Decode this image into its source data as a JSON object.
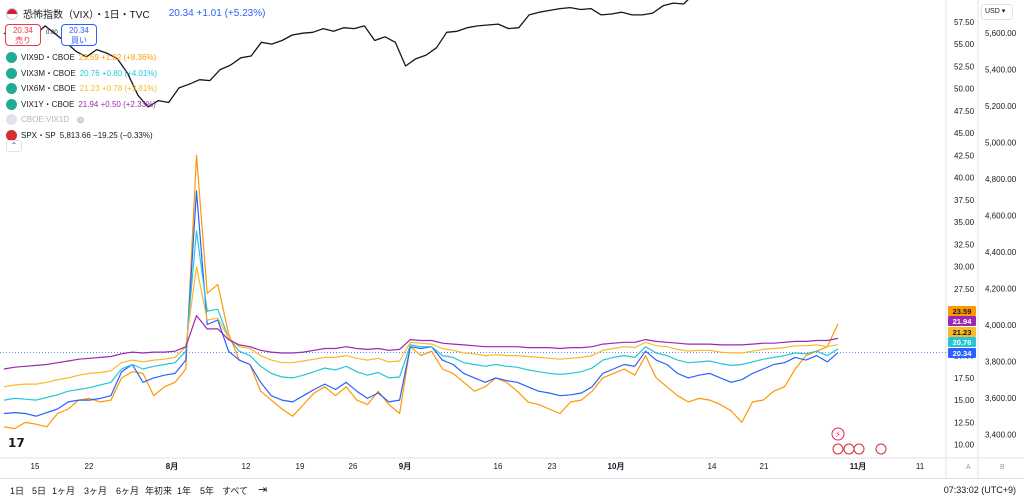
{
  "header": {
    "title": "恐怖指数（VIX）・1日・TVC",
    "price_change": "20.34 +1.01 (+5.23%)",
    "sell_price": "20.34",
    "sell_label": "売り",
    "buy_price": "20.34",
    "buy_label": "買い",
    "spread": "0.00"
  },
  "legend": [
    {
      "name": "VIX9D・CBOE",
      "value": "23.59 +1.82 (+8.36%)",
      "color": "#ff9800"
    },
    {
      "name": "VIX3M・CBOE",
      "value": "20.76 +0.80 (+4.01%)",
      "color": "#26c6da"
    },
    {
      "name": "VIX6M・CBOE",
      "value": "21.23 +0.78 (+3.81%)",
      "color": "#f9b928"
    },
    {
      "name": "VIX1Y・CBOE",
      "value": "21.94 +0.50 (+2.33%)",
      "color": "#9c27b0"
    },
    {
      "name": "CBOE:VIX1D",
      "value": "",
      "color": "#b2b5be"
    },
    {
      "name": "SPX・SP",
      "value": "5,813.66 −19.25 (−0.33%)",
      "color": "#131722"
    }
  ],
  "currency": "USD",
  "collapse_icon": "chevron-up-icon",
  "bottom": {
    "ranges": [
      "1日",
      "5日",
      "1ヶ月",
      "3ヶ月",
      "6ヶ月",
      "年初来",
      "1年",
      "5年",
      "すべて"
    ],
    "time": "07:33:02 (UTC+9)"
  },
  "chart_data": {
    "type": "line",
    "x_tick_labels": [
      "15",
      "22",
      "8月",
      "12",
      "19",
      "26",
      "9月",
      "16",
      "23",
      "10月",
      "14",
      "21",
      "11月",
      "11"
    ],
    "left_axis_ticks": [
      "57.50",
      "55.00",
      "52.50",
      "50.00",
      "47.50",
      "45.00",
      "42.50",
      "40.00",
      "37.50",
      "35.00",
      "32.50",
      "30.00",
      "27.50",
      "25.00",
      "22.50",
      "20.00",
      "17.50",
      "15.00",
      "12.50",
      "10.00"
    ],
    "right_axis_ticks": [
      "5,600.00",
      "5,400.00",
      "5,200.00",
      "5,000.00",
      "4,800.00",
      "4,600.00",
      "4,400.00",
      "4,200.00",
      "4,000.00",
      "3,800.00",
      "3,600.00",
      "3,400.00"
    ],
    "ylim_vix": [
      8.5,
      59.5
    ],
    "ylim_spx": [
      3270,
      5760
    ],
    "last_value_badges": [
      {
        "label": "23.59",
        "color": "#ff9800"
      },
      {
        "label": "21.94",
        "color": "#9c27b0"
      },
      {
        "label": "21.23",
        "color": "#f9b928"
      },
      {
        "label": "20.76",
        "color": "#26c6da"
      },
      {
        "label": "20.34",
        "color": "#2962ff"
      }
    ],
    "series": [
      {
        "name": "SPX",
        "axis": "right",
        "color": "#131722",
        "values": [
          5600,
          5570,
          5580,
          5590,
          5640,
          5595,
          5550,
          5500,
          5470,
          5510,
          5490,
          5460,
          5380,
          5260,
          5195,
          5230,
          5220,
          5300,
          5320,
          5345,
          5340,
          5400,
          5425,
          5465,
          5475,
          5550,
          5540,
          5560,
          5590,
          5600,
          5605,
          5625,
          5610,
          5630,
          5625,
          5640,
          5560,
          5580,
          5550,
          5420,
          5460,
          5480,
          5520,
          5605,
          5610,
          5630,
          5640,
          5645,
          5650,
          5625,
          5630,
          5700,
          5715,
          5725,
          5735,
          5740,
          5730,
          5735,
          5700,
          5705,
          5715,
          5700,
          5700,
          5710,
          5750,
          5765,
          5760,
          5815,
          5850,
          5855,
          5840,
          5875,
          5880,
          5870,
          5865,
          5840,
          5822,
          5830,
          5860,
          5840,
          5830,
          5813
        ]
      },
      {
        "name": "VIX9D",
        "axis": "left",
        "color": "#ff9800",
        "values": [
          12,
          11.8,
          12.5,
          12.3,
          12.0,
          13.5,
          14.0,
          15.0,
          15.2,
          14.8,
          15.0,
          17.5,
          18.2,
          18.0,
          15.5,
          16.5,
          17.0,
          18.5,
          42.5,
          27.0,
          28.0,
          22.5,
          19.5,
          19.0,
          16.0,
          15.0,
          14.0,
          13.2,
          14.5,
          15.8,
          16.5,
          15.5,
          16.5,
          15.0,
          14.5,
          16.0,
          14.5,
          13.5,
          21.0,
          20.0,
          20.5,
          18.5,
          18.0,
          17.0,
          16.0,
          16.5,
          17.5,
          17.0,
          16.0,
          14.8,
          14.5,
          14.0,
          13.5,
          14.8,
          15.0,
          16.0,
          17.5,
          18.0,
          18.5,
          17.8,
          20.0,
          17.5,
          16.5,
          15.5,
          14.8,
          15.2,
          15.0,
          14.5,
          13.8,
          12.5,
          14.8,
          15.0,
          16.0,
          16.5,
          18.5,
          20.0,
          20.5,
          21.0,
          23.59
        ]
      },
      {
        "name": "VIX",
        "axis": "left",
        "color": "#2962ff",
        "values": [
          13.5,
          13.6,
          13.5,
          13.2,
          13.6,
          14.0,
          14.8,
          15.0,
          15.0,
          15.2,
          15.5,
          18.2,
          19.0,
          17.0,
          17.5,
          17.8,
          18.0,
          19.5,
          38.5,
          23.5,
          24.0,
          20.5,
          19.5,
          19.0,
          17.0,
          15.5,
          15.0,
          14.8,
          15.5,
          16.2,
          16.8,
          16.2,
          17.0,
          16.0,
          15.2,
          15.8,
          14.8,
          15.0,
          21.0,
          20.8,
          21.0,
          19.5,
          19.0,
          18.0,
          17.5,
          17.0,
          17.5,
          17.2,
          17.0,
          16.5,
          16.0,
          15.8,
          15.5,
          15.6,
          15.8,
          16.5,
          18.0,
          18.5,
          19.0,
          18.8,
          20.5,
          19.5,
          19.0,
          18.0,
          17.5,
          17.8,
          18.0,
          17.5,
          17.0,
          17.3,
          18.0,
          18.5,
          19.0,
          19.2,
          19.8,
          19.5,
          20.0,
          19.3,
          20.34
        ]
      },
      {
        "name": "VIX3M",
        "axis": "left",
        "color": "#26c6da",
        "values": [
          15.0,
          15.2,
          15.1,
          15.0,
          15.3,
          15.6,
          16.0,
          16.2,
          16.4,
          16.7,
          17.0,
          18.5,
          19.0,
          18.5,
          18.8,
          19.0,
          19.2,
          20.5,
          34.0,
          25.0,
          25.2,
          22.0,
          20.5,
          20.0,
          18.8,
          18.0,
          17.6,
          17.5,
          17.8,
          18.2,
          18.6,
          18.4,
          18.8,
          18.2,
          17.8,
          18.1,
          17.5,
          17.6,
          21.2,
          21.0,
          21.0,
          20.0,
          19.8,
          19.2,
          19.0,
          18.8,
          19.0,
          18.8,
          18.7,
          18.4,
          18.2,
          18.0,
          17.9,
          18.0,
          18.2,
          18.6,
          19.5,
          19.8,
          20.0,
          19.8,
          21.0,
          20.3,
          20.0,
          19.5,
          19.2,
          19.3,
          19.4,
          19.1,
          18.9,
          19.0,
          19.3,
          19.6,
          19.8,
          20.0,
          20.3,
          20.2,
          20.5,
          20.0,
          20.76
        ]
      },
      {
        "name": "VIX6M",
        "axis": "left",
        "color": "#f9b928",
        "values": [
          16.5,
          16.7,
          16.8,
          16.8,
          17.0,
          17.3,
          17.5,
          17.8,
          18.0,
          18.1,
          18.3,
          19.2,
          19.5,
          19.3,
          19.5,
          19.6,
          19.8,
          21.0,
          30.0,
          24.0,
          24.2,
          22.0,
          21.0,
          20.8,
          20.0,
          19.5,
          19.2,
          19.2,
          19.4,
          19.6,
          19.8,
          19.8,
          20.0,
          19.7,
          19.5,
          19.7,
          19.3,
          19.4,
          21.5,
          21.4,
          21.3,
          20.8,
          20.6,
          20.3,
          20.2,
          20.0,
          20.1,
          20.0,
          20.0,
          19.9,
          19.8,
          19.7,
          19.6,
          19.7,
          19.8,
          20.0,
          20.6,
          20.8,
          21.0,
          20.9,
          21.5,
          21.1,
          21.0,
          20.7,
          20.5,
          20.6,
          20.6,
          20.4,
          20.3,
          20.3,
          20.5,
          20.7,
          20.8,
          20.9,
          21.1,
          21.1,
          21.2,
          21.0,
          21.23
        ]
      },
      {
        "name": "VIX1Y",
        "axis": "left",
        "color": "#9c27b0",
        "values": [
          18.5,
          18.7,
          18.8,
          18.9,
          19.0,
          19.2,
          19.4,
          19.6,
          19.7,
          19.8,
          19.9,
          20.2,
          20.4,
          20.3,
          20.4,
          20.4,
          20.5,
          21.0,
          24.5,
          23.0,
          23.0,
          21.8,
          21.2,
          21.0,
          20.6,
          20.4,
          20.3,
          20.3,
          20.4,
          20.6,
          20.8,
          20.8,
          21.0,
          20.8,
          20.7,
          20.8,
          20.6,
          20.7,
          21.8,
          21.7,
          21.7,
          21.4,
          21.3,
          21.2,
          21.1,
          21.0,
          21.0,
          21.0,
          21.0,
          20.9,
          20.9,
          20.9,
          20.8,
          20.9,
          20.9,
          21.0,
          21.3,
          21.4,
          21.5,
          21.5,
          21.8,
          21.6,
          21.5,
          21.4,
          21.3,
          21.3,
          21.3,
          21.2,
          21.2,
          21.2,
          21.3,
          21.4,
          21.4,
          21.5,
          21.6,
          21.6,
          21.7,
          21.7,
          21.94
        ]
      }
    ]
  }
}
